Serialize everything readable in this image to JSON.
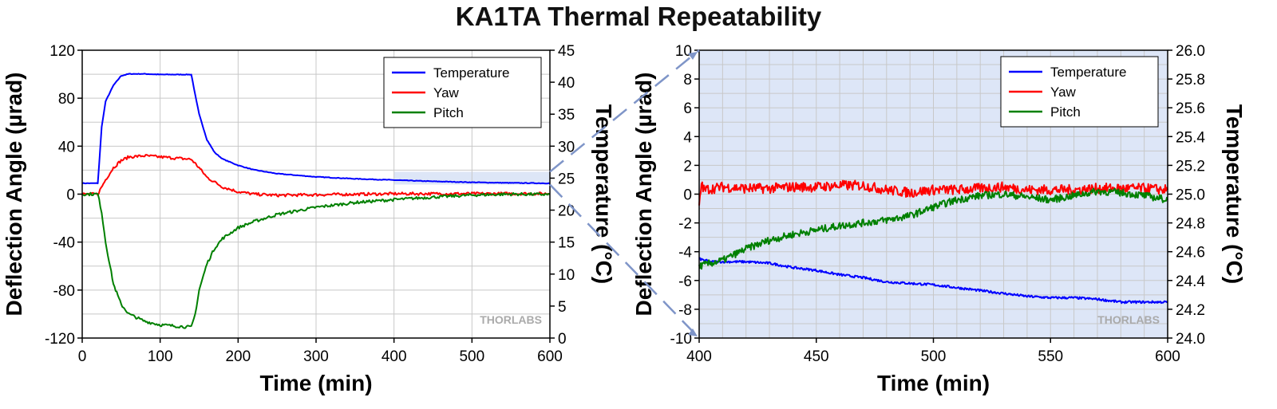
{
  "title": "KA1TA Thermal Repeatability",
  "watermark": "THORLABS",
  "colors": {
    "temperature": "#0000ff",
    "yaw": "#ff0000",
    "pitch": "#008000",
    "zoom_fill": "#dde6f7",
    "grid": "#c8c8c8"
  },
  "chart_data": [
    {
      "type": "line",
      "xlabel": "Time (min)",
      "ylabel": "Deflection Angle (µrad)",
      "y2label": "Temperature (°C)",
      "xlim": [
        0,
        600
      ],
      "ylim": [
        -120,
        120
      ],
      "y2lim": [
        0,
        45
      ],
      "xticks": [
        0,
        100,
        200,
        300,
        400,
        500,
        600
      ],
      "yticks": [
        -120,
        -80,
        -40,
        0,
        40,
        80,
        120
      ],
      "y2ticks": [
        0,
        5,
        10,
        15,
        20,
        25,
        30,
        35,
        40,
        45
      ],
      "grid": true,
      "legend_position": "top-right",
      "highlight_region": {
        "x": [
          400,
          600
        ],
        "y2": [
          24,
          26
        ]
      },
      "series": [
        {
          "name": "Temperature",
          "axis": "y2",
          "color": "#0000ff",
          "x": [
            0,
            20,
            25,
            30,
            40,
            50,
            60,
            80,
            100,
            120,
            140,
            145,
            150,
            160,
            170,
            180,
            200,
            220,
            250,
            300,
            350,
            400,
            450,
            500,
            550,
            600
          ],
          "y": [
            24.2,
            24.2,
            33,
            37,
            39.5,
            41,
            41.3,
            41.3,
            41.2,
            41.2,
            41.2,
            38,
            35,
            31,
            29,
            28,
            27,
            26.3,
            25.7,
            25.2,
            24.9,
            24.7,
            24.5,
            24.35,
            24.25,
            24.2
          ]
        },
        {
          "name": "Yaw",
          "axis": "y",
          "color": "#ff0000",
          "x": [
            0,
            20,
            30,
            40,
            50,
            60,
            80,
            100,
            120,
            140,
            150,
            160,
            180,
            200,
            220,
            250,
            300,
            400,
            500,
            600
          ],
          "y": [
            0,
            0,
            12,
            22,
            28,
            31,
            32,
            31,
            30,
            29,
            22,
            14,
            6,
            2,
            0,
            -1,
            -0.5,
            0.3,
            0.4,
            0.4
          ]
        },
        {
          "name": "Pitch",
          "axis": "y",
          "color": "#008000",
          "x": [
            0,
            20,
            25,
            30,
            40,
            50,
            60,
            80,
            100,
            120,
            140,
            145,
            150,
            160,
            170,
            180,
            200,
            220,
            250,
            300,
            350,
            400,
            450,
            500,
            550,
            600
          ],
          "y": [
            0,
            0,
            -15,
            -40,
            -75,
            -92,
            -100,
            -106,
            -109,
            -110,
            -111,
            -100,
            -80,
            -58,
            -45,
            -37,
            -28,
            -23,
            -17,
            -11,
            -7,
            -4.6,
            -2.5,
            -0.8,
            0,
            -0.3
          ]
        }
      ]
    },
    {
      "type": "line",
      "xlabel": "Time (min)",
      "ylabel": "Deflection Angle (µrad)",
      "y2label": "Temperature (°C)",
      "xlim": [
        400,
        600
      ],
      "ylim": [
        -10,
        10
      ],
      "y2lim": [
        24.0,
        26.0
      ],
      "xticks": [
        400,
        450,
        500,
        550,
        600
      ],
      "yticks": [
        -10,
        -8,
        -6,
        -4,
        -2,
        0,
        2,
        4,
        6,
        8,
        10
      ],
      "y2ticks": [
        24.0,
        24.2,
        24.4,
        24.6,
        24.8,
        25.0,
        25.2,
        25.4,
        25.6,
        25.8,
        26.0
      ],
      "grid": true,
      "legend_position": "top-right",
      "series": [
        {
          "name": "Temperature",
          "axis": "y2",
          "color": "#0000ff",
          "x": [
            400,
            405,
            420,
            430,
            440,
            450,
            460,
            470,
            480,
            490,
            500,
            510,
            520,
            530,
            540,
            550,
            560,
            570,
            580,
            590,
            600
          ],
          "y": [
            24.55,
            24.53,
            24.53,
            24.52,
            24.49,
            24.47,
            24.44,
            24.42,
            24.39,
            24.38,
            24.37,
            24.35,
            24.33,
            24.31,
            24.29,
            24.28,
            24.28,
            24.27,
            24.25,
            24.25,
            24.25
          ]
        },
        {
          "name": "Yaw",
          "axis": "y",
          "color": "#ff0000",
          "x": [
            400,
            401,
            402,
            410,
            420,
            430,
            440,
            450,
            460,
            470,
            480,
            490,
            500,
            510,
            520,
            530,
            540,
            550,
            560,
            570,
            580,
            590,
            600
          ],
          "y": [
            -1,
            0.8,
            0.3,
            0.5,
            0.4,
            0.4,
            0.5,
            0.5,
            0.6,
            0.6,
            0.3,
            0.1,
            0.3,
            0.3,
            0.4,
            0.5,
            0.3,
            0.3,
            0.3,
            0.4,
            0.4,
            0.4,
            0.3
          ]
        },
        {
          "name": "Pitch",
          "axis": "y",
          "color": "#008000",
          "x": [
            400,
            410,
            420,
            430,
            440,
            450,
            460,
            470,
            480,
            490,
            500,
            510,
            520,
            530,
            540,
            550,
            560,
            570,
            580,
            590,
            600
          ],
          "y": [
            -5,
            -4.6,
            -3.8,
            -3.2,
            -2.8,
            -2.5,
            -2.2,
            -2.0,
            -1.8,
            -1.5,
            -0.9,
            -0.4,
            -0.1,
            0,
            -0.2,
            -0.4,
            -0.1,
            0.2,
            0.1,
            -0.1,
            -0.4
          ]
        }
      ]
    }
  ]
}
